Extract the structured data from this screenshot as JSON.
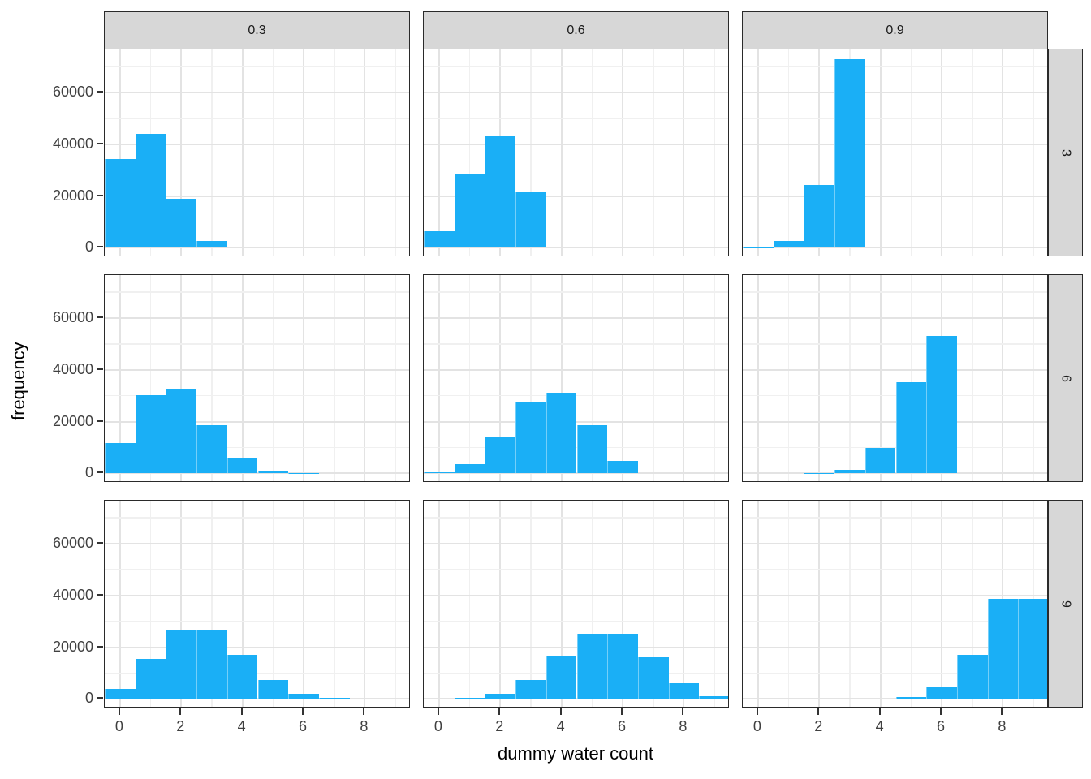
{
  "figure": {
    "x_axis_title": "dummy water count",
    "y_axis_title": "frequency"
  },
  "chart_data": {
    "type": "bar",
    "subtype": "faceted-histogram",
    "title": "",
    "xlabel": "dummy water count",
    "ylabel": "frequency",
    "facet": {
      "col_labels": [
        "0.3",
        "0.6",
        "0.9"
      ],
      "row_labels": [
        "3",
        "6",
        "9"
      ]
    },
    "x": [
      0,
      1,
      2,
      3,
      4,
      5,
      6,
      7,
      8,
      9
    ],
    "panels": [
      {
        "row": "3",
        "col": "0.3",
        "values": [
          34300,
          44100,
          18900,
          2700,
          0,
          0,
          0,
          0,
          0,
          0
        ]
      },
      {
        "row": "3",
        "col": "0.6",
        "values": [
          6400,
          28800,
          43200,
          21600,
          0,
          0,
          0,
          0,
          0,
          0
        ]
      },
      {
        "row": "3",
        "col": "0.9",
        "values": [
          100,
          2700,
          24300,
          72900,
          0,
          0,
          0,
          0,
          0,
          0
        ]
      },
      {
        "row": "6",
        "col": "0.3",
        "values": [
          11800,
          30300,
          32400,
          18500,
          6000,
          1000,
          100,
          0,
          0,
          0
        ]
      },
      {
        "row": "6",
        "col": "0.6",
        "values": [
          400,
          3700,
          13800,
          27600,
          31100,
          18700,
          4700,
          0,
          0,
          0
        ]
      },
      {
        "row": "6",
        "col": "0.9",
        "values": [
          0,
          0,
          100,
          1500,
          9800,
          35400,
          53100,
          0,
          0,
          0
        ]
      },
      {
        "row": "9",
        "col": "0.3",
        "values": [
          4000,
          15600,
          26700,
          26700,
          17200,
          7400,
          2100,
          400,
          40,
          0
        ]
      },
      {
        "row": "9",
        "col": "0.6",
        "values": [
          30,
          400,
          2100,
          7400,
          16700,
          25100,
          25100,
          16100,
          6000,
          1000
        ]
      },
      {
        "row": "9",
        "col": "0.9",
        "values": [
          0,
          0,
          0,
          0,
          100,
          700,
          4500,
          17200,
          38700,
          38700
        ]
      }
    ],
    "x_ticks": [
      0,
      2,
      4,
      6,
      8
    ],
    "x_tick_labels": [
      "0",
      "2",
      "4",
      "6",
      "8"
    ],
    "x_minor_gridlines": [
      1,
      3,
      5,
      7,
      9
    ],
    "y_ticks": [
      0,
      20000,
      40000,
      60000
    ],
    "y_tick_labels": [
      "0",
      "20000",
      "40000",
      "60000"
    ],
    "y_minor_gridlines": [
      10000,
      30000,
      50000,
      70000
    ],
    "xlim": [
      -0.5,
      9.5
    ],
    "ylim": [
      -3650,
      76650
    ],
    "grid": true,
    "legend": false
  },
  "style": {
    "bar_fill": "#1AAFF6",
    "strip_background": "#D7D7D7",
    "panel_border": "#2A2A2A",
    "grid_major": "#E3E3E3",
    "grid_minor": "#F0F0F0",
    "tick_color": "#333333",
    "axis_text_color": "#404040",
    "axis_title_color": "#000000",
    "background": "#FFFFFF"
  }
}
